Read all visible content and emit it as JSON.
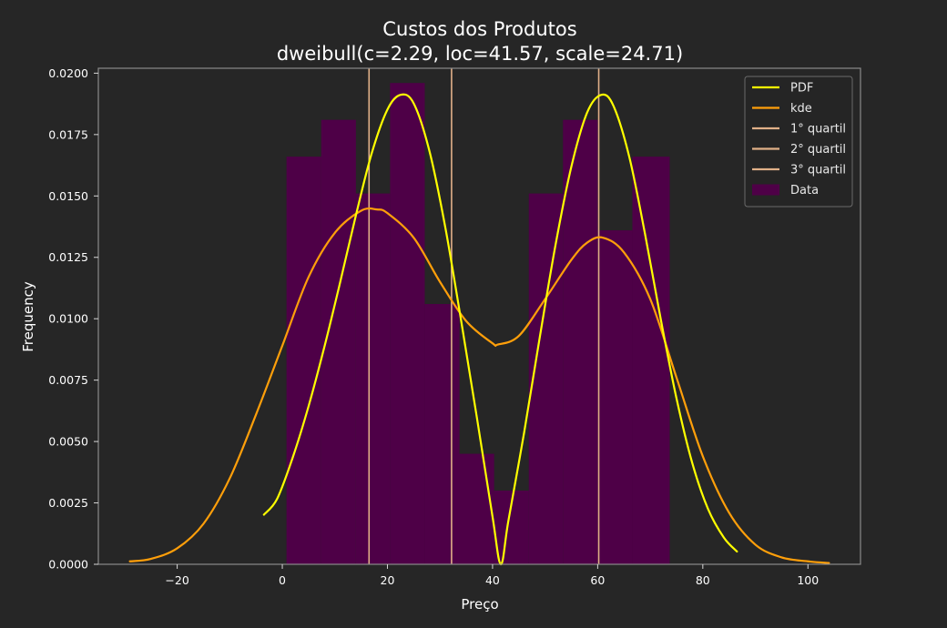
{
  "chart_data": {
    "type": "histogram",
    "title": "Custos dos Produtos",
    "subtitle": "dweibull(c=2.29, loc=41.57, scale=24.71)",
    "xlabel": "Preço",
    "ylabel": "Frequency",
    "xlim": [
      -35,
      110
    ],
    "ylim": [
      0,
      0.0202
    ],
    "xticks": [
      -20,
      0,
      20,
      40,
      60,
      80,
      100
    ],
    "xtick_labels": [
      "−20",
      "0",
      "20",
      "40",
      "60",
      "80",
      "100"
    ],
    "yticks": [
      0.0,
      0.0025,
      0.005,
      0.0075,
      0.01,
      0.0125,
      0.015,
      0.0175,
      0.02
    ],
    "ytick_labels": [
      "0.0000",
      "0.0025",
      "0.0050",
      "0.0075",
      "0.0100",
      "0.0125",
      "0.0150",
      "0.0175",
      "0.0200"
    ],
    "grid": false,
    "legend_position": "top-right",
    "histogram": {
      "name": "Data",
      "color": "#4e0047",
      "bins": [
        {
          "x0": 0.8,
          "x1": 7.4,
          "value": 0.0166
        },
        {
          "x0": 7.4,
          "x1": 14.0,
          "value": 0.0181
        },
        {
          "x0": 14.0,
          "x1": 20.5,
          "value": 0.0151
        },
        {
          "x0": 20.5,
          "x1": 27.1,
          "value": 0.0196
        },
        {
          "x0": 27.1,
          "x1": 33.7,
          "value": 0.0106
        },
        {
          "x0": 33.7,
          "x1": 40.3,
          "value": 0.0045
        },
        {
          "x0": 40.3,
          "x1": 46.9,
          "value": 0.003
        },
        {
          "x0": 46.9,
          "x1": 53.4,
          "value": 0.0151
        },
        {
          "x0": 53.4,
          "x1": 60.0,
          "value": 0.0181
        },
        {
          "x0": 60.0,
          "x1": 66.6,
          "value": 0.0136
        },
        {
          "x0": 66.6,
          "x1": 73.7,
          "value": 0.0166
        }
      ]
    },
    "series": [
      {
        "name": "PDF",
        "type": "line",
        "color": "#ffff00",
        "x": [
          -3.5,
          -1,
          2,
          5,
          8,
          11,
          14,
          17,
          20,
          22.5,
          25,
          28,
          31,
          34,
          37,
          40,
          41.57,
          43,
          46,
          49,
          52,
          55,
          58,
          60.7,
          63,
          66,
          69,
          72,
          75,
          78,
          81,
          84,
          86.5
        ],
        "y": [
          0.00202,
          0.00266,
          0.00436,
          0.00644,
          0.00885,
          0.01148,
          0.01421,
          0.01673,
          0.01852,
          0.01912,
          0.01877,
          0.01682,
          0.01373,
          0.00995,
          0.006,
          0.00193,
          0.0,
          0.00176,
          0.00536,
          0.00927,
          0.01303,
          0.0162,
          0.0184,
          0.01912,
          0.01867,
          0.0166,
          0.01346,
          0.00998,
          0.00675,
          0.00412,
          0.00225,
          0.00109,
          0.00052
        ]
      },
      {
        "name": "kde",
        "type": "line",
        "color": "#ff9f0a",
        "x": [
          -29,
          -25,
          -20,
          -15,
          -10,
          -5,
          0,
          5,
          10,
          15,
          18,
          20,
          25,
          30,
          35,
          40,
          41,
          45,
          50,
          55,
          58,
          61,
          65,
          70,
          75,
          80,
          85,
          90,
          95,
          100,
          104
        ],
        "y": [
          0.00012,
          0.00022,
          0.00065,
          0.00165,
          0.0035,
          0.0061,
          0.0089,
          0.0117,
          0.0135,
          0.0144,
          0.01445,
          0.0143,
          0.0133,
          0.0115,
          0.0099,
          0.009,
          0.00895,
          0.0093,
          0.0108,
          0.0124,
          0.0131,
          0.0133,
          0.0127,
          0.0108,
          0.0076,
          0.0044,
          0.0021,
          0.0008,
          0.00028,
          0.00012,
          5e-05
        ]
      }
    ],
    "vlines": [
      {
        "name": "1° quartil",
        "x": 16.5,
        "color": "#e0b088"
      },
      {
        "name": "2° quartil",
        "x": 32.2,
        "color": "#e0b088"
      },
      {
        "name": "3° quartil",
        "x": 60.2,
        "color": "#e0b088"
      }
    ],
    "legend": [
      {
        "label": "PDF",
        "kind": "line",
        "color": "#ffff00"
      },
      {
        "label": "kde",
        "kind": "line",
        "color": "#ff9f0a"
      },
      {
        "label": "1° quartil",
        "kind": "line",
        "color": "#e0b088"
      },
      {
        "label": "2° quartil",
        "kind": "line",
        "color": "#e0b088"
      },
      {
        "label": "3° quartil",
        "kind": "line",
        "color": "#e0b088"
      },
      {
        "label": "Data",
        "kind": "patch",
        "color": "#4e0047"
      }
    ]
  }
}
